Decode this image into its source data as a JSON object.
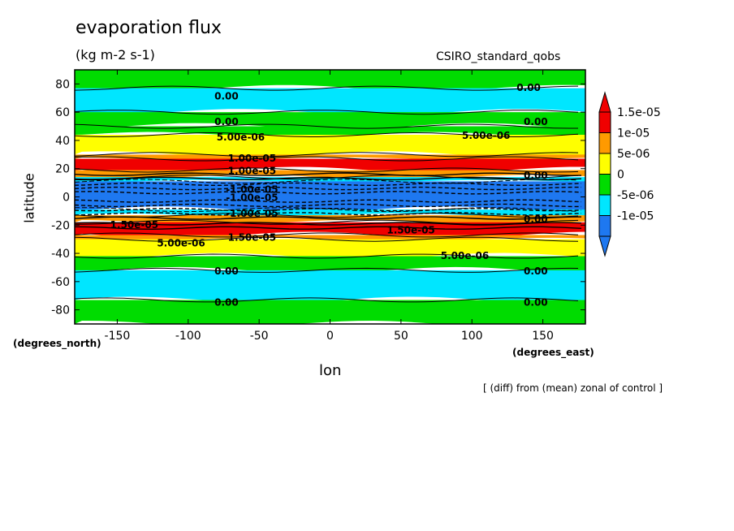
{
  "header": {
    "title": "evaporation flux",
    "units": "(kg m-2 s-1)",
    "source": "CSIRO_standard_qobs"
  },
  "footer": {
    "note": "[ (diff) from (mean) zonal of control ]"
  },
  "colors": {
    "neg_10": "#1e78f0",
    "neg_5": "#00e6ff",
    "zero": "#00dc00",
    "pos_5": "#ffff00",
    "pos_10": "#ff9a00",
    "pos_15": "#f00000"
  },
  "chart_data": {
    "type": "heatmap",
    "title": "evaporation flux",
    "subtitle": "(kg m-2 s-1)",
    "xlabel": "lon",
    "ylabel": "latitude",
    "xunit": "(degrees_east)",
    "yunit": "(degrees_north)",
    "xlim": [
      -180,
      180
    ],
    "ylim": [
      -90,
      90
    ],
    "xticks": [
      -150,
      -100,
      -50,
      0,
      50,
      100,
      150
    ],
    "yticks": [
      -80,
      -60,
      -40,
      -20,
      0,
      20,
      40,
      60,
      80
    ],
    "colorbar": {
      "labels": [
        "1.5e-05",
        "1e-05",
        "5e-06",
        "0",
        "-5e-06",
        "-1e-05"
      ],
      "levels": [
        -1e-05,
        -5e-06,
        0,
        5e-06,
        1e-05,
        1.5e-05
      ],
      "extend": "both"
    },
    "bands": [
      {
        "lat_from": 90,
        "lat_to": 77,
        "class": "zero"
      },
      {
        "lat_from": 77,
        "lat_to": 60,
        "class": "neg_5"
      },
      {
        "lat_from": 60,
        "lat_to": 50,
        "class": "zero"
      },
      {
        "lat_from": 50,
        "lat_to": 44,
        "class": "zero"
      },
      {
        "lat_from": 44,
        "lat_to": 30,
        "class": "pos_5"
      },
      {
        "lat_from": 30,
        "lat_to": 27,
        "class": "pos_10"
      },
      {
        "lat_from": 27,
        "lat_to": 19,
        "class": "pos_15"
      },
      {
        "lat_from": 19,
        "lat_to": 14,
        "class": "pos_10"
      },
      {
        "lat_from": 14,
        "lat_to": 11,
        "class": "neg_5"
      },
      {
        "lat_from": 11,
        "lat_to": -9,
        "class": "neg_10"
      },
      {
        "lat_from": -9,
        "lat_to": -13,
        "class": "neg_5"
      },
      {
        "lat_from": -13,
        "lat_to": -18,
        "class": "pos_10"
      },
      {
        "lat_from": -18,
        "lat_to": -27,
        "class": "pos_15"
      },
      {
        "lat_from": -27,
        "lat_to": -30,
        "class": "pos_10"
      },
      {
        "lat_from": -30,
        "lat_to": -42,
        "class": "pos_5"
      },
      {
        "lat_from": -42,
        "lat_to": -52,
        "class": "zero"
      },
      {
        "lat_from": -52,
        "lat_to": -73,
        "class": "neg_5"
      },
      {
        "lat_from": -73,
        "lat_to": -90,
        "class": "zero"
      }
    ],
    "contour_labels": [
      {
        "text": "0.00",
        "lon": -73,
        "lat": 71
      },
      {
        "text": "0.00",
        "lon": 140,
        "lat": 77
      },
      {
        "text": "0.00",
        "lon": -73,
        "lat": 53
      },
      {
        "text": "0.00",
        "lon": 145,
        "lat": 53
      },
      {
        "text": "5.00e-06",
        "lon": -63,
        "lat": 42
      },
      {
        "text": "5.00e-06",
        "lon": 110,
        "lat": 43
      },
      {
        "text": "1.00e-05",
        "lon": -55,
        "lat": 27
      },
      {
        "text": "1.00e-05",
        "lon": -55,
        "lat": 18
      },
      {
        "text": "0.00",
        "lon": 145,
        "lat": 15
      },
      {
        "text": "-1.00e-05",
        "lon": -55,
        "lat": 5
      },
      {
        "text": "-1.00e-05",
        "lon": -55,
        "lat": -1
      },
      {
        "text": "-1.00e-05",
        "lon": -55,
        "lat": -12
      },
      {
        "text": "1.50e-05",
        "lon": -138,
        "lat": -20
      },
      {
        "text": "1.50e-05",
        "lon": -55,
        "lat": -29
      },
      {
        "text": "1.50e-05",
        "lon": 57,
        "lat": -24
      },
      {
        "text": "0.00",
        "lon": 145,
        "lat": -16
      },
      {
        "text": "5.00e-06",
        "lon": -105,
        "lat": -33
      },
      {
        "text": "5.00e-06",
        "lon": 95,
        "lat": -42
      },
      {
        "text": "0.00",
        "lon": -73,
        "lat": -53
      },
      {
        "text": "0.00",
        "lon": 145,
        "lat": -53
      },
      {
        "text": "0.00",
        "lon": -73,
        "lat": -75
      },
      {
        "text": "0.00",
        "lon": 145,
        "lat": -75
      }
    ]
  }
}
